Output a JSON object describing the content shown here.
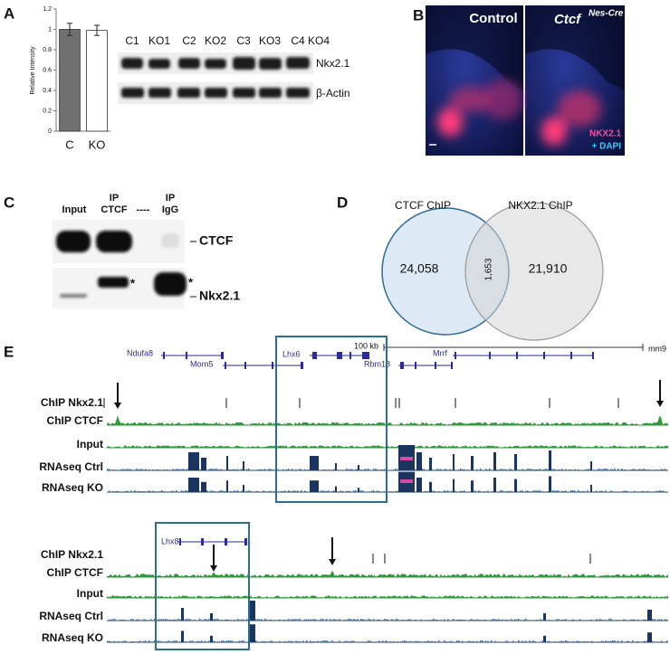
{
  "chart_data": {
    "type": "bar",
    "ylabel": "Relative Intensity",
    "categories": [
      "C",
      "KO"
    ],
    "values": [
      1,
      0.99
    ],
    "errors": [
      0.06,
      0.05
    ],
    "colors": [
      "#707070",
      "#ffffff"
    ],
    "ylim": [
      0,
      1.2
    ],
    "yticks": [
      0,
      0.2,
      0.4,
      0.6,
      0.8,
      1,
      1.2
    ]
  },
  "panels": {
    "a": {
      "label": "A",
      "lanes": [
        "C1",
        "KO1",
        "C2",
        "KO2",
        "C3",
        "KO3",
        "C4",
        "KO4"
      ],
      "bands": [
        "Nkx2.1",
        "β-Actin"
      ]
    },
    "b": {
      "label": "B",
      "control": "Control",
      "ko_gene": "Ctcf",
      "ko_allele": "Nes-Cre",
      "stain1": "NKX2.1",
      "stain2": "+ DAPI"
    },
    "c": {
      "label": "C",
      "lanes": [
        [
          "Input"
        ],
        [
          "IP",
          "CTCF"
        ],
        [
          "----"
        ],
        [
          "IP",
          "IgG"
        ]
      ],
      "bands": [
        "CTCF",
        "Nkx2.1"
      ],
      "star": "*"
    },
    "d": {
      "label": "D",
      "sets": [
        "CTCF ChIP",
        "NKX2.1 ChIP"
      ],
      "counts": [
        "24,058",
        "1,653",
        "21,910"
      ]
    },
    "e": {
      "label": "E",
      "scale": "100 kb",
      "assembly": "mm9",
      "genes": [
        "Ndufa8",
        "Morn5",
        "Lhx6",
        "Rbm18",
        "Mrrf",
        "Lhx8"
      ],
      "tracks": [
        "ChIP Nkx2.1",
        "ChIP CTCF",
        "Input",
        "RNAseq Ctrl",
        "RNAseq  KO"
      ]
    }
  }
}
